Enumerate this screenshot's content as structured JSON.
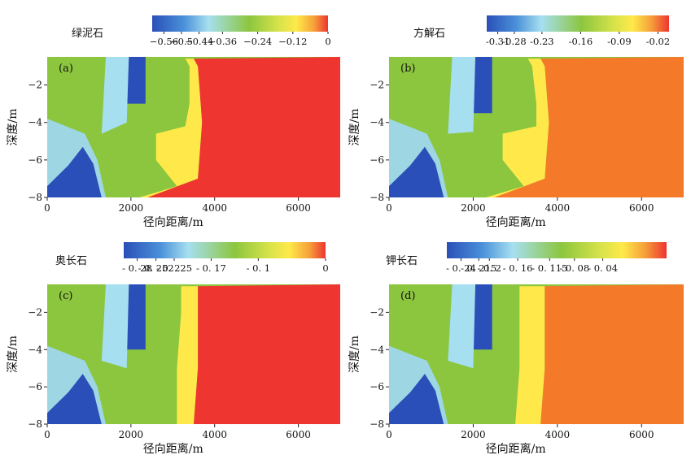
{
  "colors": {
    "deep_blue": "#2a4fb8",
    "light_blue": "#8fd0e6",
    "green": "#8cc63f",
    "yellow": "#ffe94a",
    "orange": "#f47a2a",
    "red": "#ee3530"
  },
  "chart_data": [
    {
      "type": "heatmap",
      "panel_label": "(a)",
      "title": "绿泥石",
      "xlabel": "径向距离/m",
      "ylabel": "深度/m",
      "xlim": [
        0,
        7000
      ],
      "ylim": [
        -8,
        -0.5
      ],
      "xticks": [
        0,
        2000,
        4000,
        6000
      ],
      "yticks": [
        -8,
        -6,
        -4,
        -2
      ],
      "colorbar": {
        "vmin": -0.6,
        "vmax": 0.0,
        "ticks": [
          -0.56,
          -0.5,
          -0.44,
          -0.36,
          -0.24,
          -0.12,
          0
        ],
        "tick_labels": [
          "−0.56",
          "−0.5",
          "−0.44",
          "−0.36",
          "−0.24",
          "−0.12",
          "0"
        ]
      },
      "fronts": [
        {
          "name": "blue_core_x",
          "depth": [
            -8,
            -6,
            -4.6,
            -4.4,
            -3,
            -1.5,
            -0.6
          ],
          "x": [
            1000,
            1200,
            800,
            2400,
            2400,
            2200,
            2200
          ]
        },
        {
          "name": "green_band_x",
          "depth": [
            -8,
            -7.4,
            -6,
            -4.6,
            -4.2,
            -3,
            -1,
            -0.6
          ],
          "x": [
            2200,
            3100,
            2600,
            2600,
            3300,
            3400,
            3400,
            3300
          ]
        },
        {
          "name": "red_front_x",
          "depth": [
            -8,
            -7,
            -4,
            -1,
            -0.6
          ],
          "x": [
            2400,
            3600,
            3700,
            3600,
            3500
          ]
        }
      ]
    },
    {
      "type": "heatmap",
      "panel_label": "(b)",
      "title": "方解石",
      "xlabel": "径向距离/m",
      "ylabel": "深度/m",
      "xlim": [
        0,
        7000
      ],
      "ylim": [
        -8,
        -0.5
      ],
      "xticks": [
        0,
        2000,
        4000,
        6000
      ],
      "yticks": [
        -8,
        -6,
        -4,
        -2
      ],
      "colorbar": {
        "vmin": -0.33,
        "vmax": 0.0,
        "ticks": [
          -0.31,
          -0.28,
          -0.23,
          -0.16,
          -0.09,
          -0.02
        ],
        "tick_labels": [
          "-0.31",
          "-0.28",
          "-0.23",
          "-0.16",
          "-0.09",
          "-0.02"
        ]
      },
      "fronts": [
        {
          "name": "blue_core_x",
          "depth": [
            -8,
            -6,
            -4.6,
            -4.4,
            -3.5,
            -2.5,
            -0.6
          ],
          "x": [
            1000,
            1200,
            800,
            2400,
            2500,
            2300,
            2300
          ]
        },
        {
          "name": "green_band_x",
          "depth": [
            -8,
            -7.4,
            -6,
            -4.6,
            -4.2,
            -3,
            -1,
            -0.6
          ],
          "x": [
            2300,
            3200,
            2700,
            2700,
            3500,
            3500,
            3400,
            3300
          ]
        },
        {
          "name": "orange_front_x",
          "depth": [
            -8,
            -7,
            -4,
            -1,
            -0.6
          ],
          "x": [
            2500,
            3700,
            3800,
            3700,
            3600
          ]
        }
      ]
    },
    {
      "type": "heatmap",
      "panel_label": "(c)",
      "title": "奥长石",
      "xlabel": "径向距离/m",
      "ylabel": "深度/m",
      "xlim": [
        0,
        7000
      ],
      "ylim": [
        -8,
        -0.5
      ],
      "xticks": [
        0,
        2000,
        4000,
        6000
      ],
      "yticks": [
        -8,
        -6,
        -4,
        -2
      ],
      "colorbar": {
        "vmin": -0.3,
        "vmax": 0.0,
        "ticks": [
          -0.28,
          -0.252,
          -0.225,
          -0.17,
          -0.1,
          0
        ],
        "tick_labels": [
          "- 0. 28",
          "- 0. 252",
          "- 0. 225",
          "- 0. 17",
          "- 0. 1",
          "0"
        ]
      },
      "fronts": [
        {
          "name": "blue_core_x",
          "depth": [
            -8,
            -6,
            -5,
            -4,
            -2,
            -0.6
          ],
          "x": [
            1300,
            1100,
            900,
            500,
            2200,
            2200
          ]
        },
        {
          "name": "green_band_x",
          "depth": [
            -8,
            -5,
            -2,
            -0.6
          ],
          "x": [
            3100,
            3100,
            3200,
            3200
          ]
        },
        {
          "name": "red_front_x",
          "depth": [
            -8,
            -5,
            -2,
            -0.6
          ],
          "x": [
            3500,
            3600,
            3600,
            3600
          ]
        }
      ]
    },
    {
      "type": "heatmap",
      "panel_label": "(d)",
      "title": "钾长石",
      "xlabel": "径向距离/m",
      "ylabel": "深度/m",
      "xlim": [
        0,
        7000
      ],
      "ylim": [
        -8,
        -0.5
      ],
      "xticks": [
        0,
        2000,
        4000,
        6000
      ],
      "yticks": [
        -8,
        -6,
        -4,
        -2
      ],
      "colorbar": {
        "vmin": -0.26,
        "vmax": 0.05,
        "ticks": [
          -0.24,
          -0.215,
          -0.2,
          -0.16,
          -0.115,
          -0.08,
          -0.04
        ],
        "tick_labels": [
          "- 0. 24",
          "- 0. 215",
          "- 0. 2",
          "- 0. 16",
          "- 0. 115",
          "- 0. 08",
          "- 0. 04"
        ]
      },
      "fronts": [
        {
          "name": "blue_core_x",
          "depth": [
            -8,
            -6,
            -5,
            -4,
            -2.5,
            -0.6
          ],
          "x": [
            1200,
            1000,
            900,
            500,
            2300,
            2300
          ]
        },
        {
          "name": "green_band_x",
          "depth": [
            -8,
            -5,
            -2,
            -0.6
          ],
          "x": [
            3000,
            3100,
            3100,
            3100
          ]
        },
        {
          "name": "orange_front_x",
          "depth": [
            -8,
            -5,
            -2,
            -0.6
          ],
          "x": [
            3600,
            3700,
            3700,
            3700
          ]
        }
      ]
    }
  ]
}
